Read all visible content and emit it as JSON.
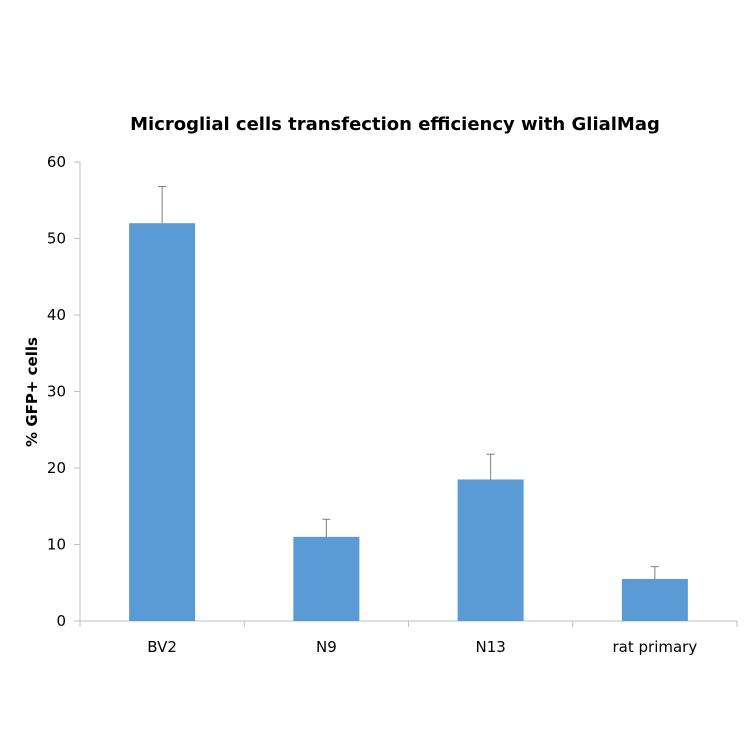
{
  "chart_data": {
    "type": "bar",
    "title": "Microglial cells transfection efficiency with GlialMag",
    "xlabel": "",
    "ylabel": "% GFP+ cells",
    "categories": [
      "BV2",
      "N9",
      "N13",
      "rat primary"
    ],
    "values": [
      52,
      11,
      18.5,
      5.5
    ],
    "error_upper": [
      4.8,
      2.3,
      3.3,
      1.6
    ],
    "ylim": [
      0,
      60
    ],
    "yticks": [
      0,
      10,
      20,
      30,
      40,
      50,
      60
    ],
    "ytick_labels": [
      "0",
      "10",
      "20",
      "30",
      "40",
      "50",
      "60"
    ],
    "grid": false,
    "legend": "none",
    "colors": {
      "bar": "#5b9bd5",
      "axis": "#bfbfbf",
      "error_bar": "#7f7f7f"
    }
  }
}
